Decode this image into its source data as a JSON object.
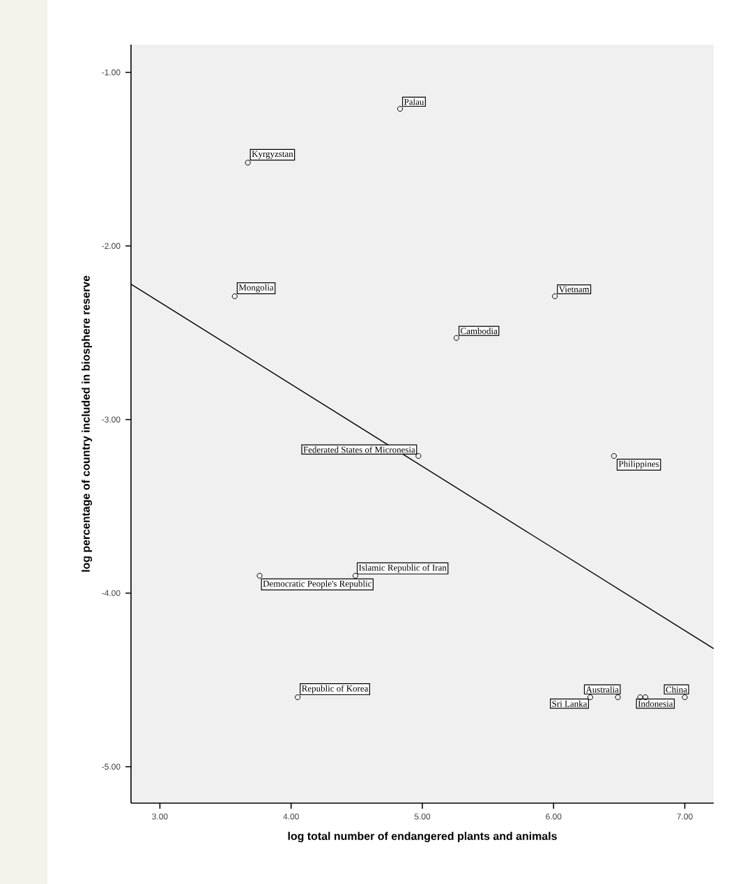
{
  "chart_data": {
    "type": "scatter",
    "xlabel": "log total number of endangered plants and animals",
    "ylabel": "log percentage of country included in biosphere reserve",
    "xlim": [
      2.78,
      7.22
    ],
    "ylim": [
      -5.21,
      -0.84
    ],
    "xticks": [
      {
        "value": 3,
        "label": "3.00"
      },
      {
        "value": 4,
        "label": "4.00"
      },
      {
        "value": 5,
        "label": "5.00"
      },
      {
        "value": 6,
        "label": "6.00"
      },
      {
        "value": 7,
        "label": "7.00"
      }
    ],
    "yticks": [
      {
        "value": -1,
        "label": "-1.00"
      },
      {
        "value": -2,
        "label": "-2.00"
      },
      {
        "value": -3,
        "label": "-3.00"
      },
      {
        "value": -4,
        "label": "-4.00"
      },
      {
        "value": -5,
        "label": "-5.00"
      }
    ],
    "series": [
      {
        "marker": "circle",
        "color": "#000000",
        "x": [
          4.83,
          3.67,
          3.57,
          6.01,
          5.26,
          4.97,
          6.46,
          4.49,
          3.76,
          4.05,
          6.28,
          6.49,
          6.66,
          6.7,
          7.0
        ],
        "values": [
          -1.21,
          -1.52,
          -2.29,
          -2.29,
          -2.53,
          -3.21,
          -3.21,
          -3.9,
          -3.9,
          -4.6,
          -4.6,
          -4.6,
          -4.6,
          -4.6,
          -4.6
        ]
      },
      {
        "type": "line",
        "marker": "none",
        "color": "#000000",
        "x": [
          2.78,
          7.22
        ],
        "values": [
          -2.22,
          -4.32
        ]
      }
    ],
    "annotations": [
      {
        "text": "Palau",
        "x": 4.83,
        "y": -1.21
      },
      {
        "text": "Kyrgyzstan",
        "x": 3.67,
        "y": -1.52
      },
      {
        "text": "Mongolia",
        "x": 3.57,
        "y": -2.29
      },
      {
        "text": "Vietnam",
        "x": 6.01,
        "y": -2.29
      },
      {
        "text": "Cambodia",
        "x": 5.26,
        "y": -2.53
      },
      {
        "text": "Federated States of Micronesia",
        "x": 4.97,
        "y": -3.21
      },
      {
        "text": "Philippines",
        "x": 6.46,
        "y": -3.21
      },
      {
        "text": "Islamic Republic of Iran",
        "x": 4.49,
        "y": -3.9
      },
      {
        "text": "Democratic People's Republic",
        "x": 3.76,
        "y": -3.9
      },
      {
        "text": "Republic of Korea",
        "x": 4.05,
        "y": -4.6
      },
      {
        "text": "Sri Lanka",
        "x": 6.28,
        "y": -4.6
      },
      {
        "text": "Australia",
        "x": 6.49,
        "y": -4.6
      },
      {
        "text": "Indonesia",
        "x": 6.66,
        "y": -4.6
      },
      {
        "text": "China",
        "x": 7.0,
        "y": -4.6
      }
    ]
  }
}
